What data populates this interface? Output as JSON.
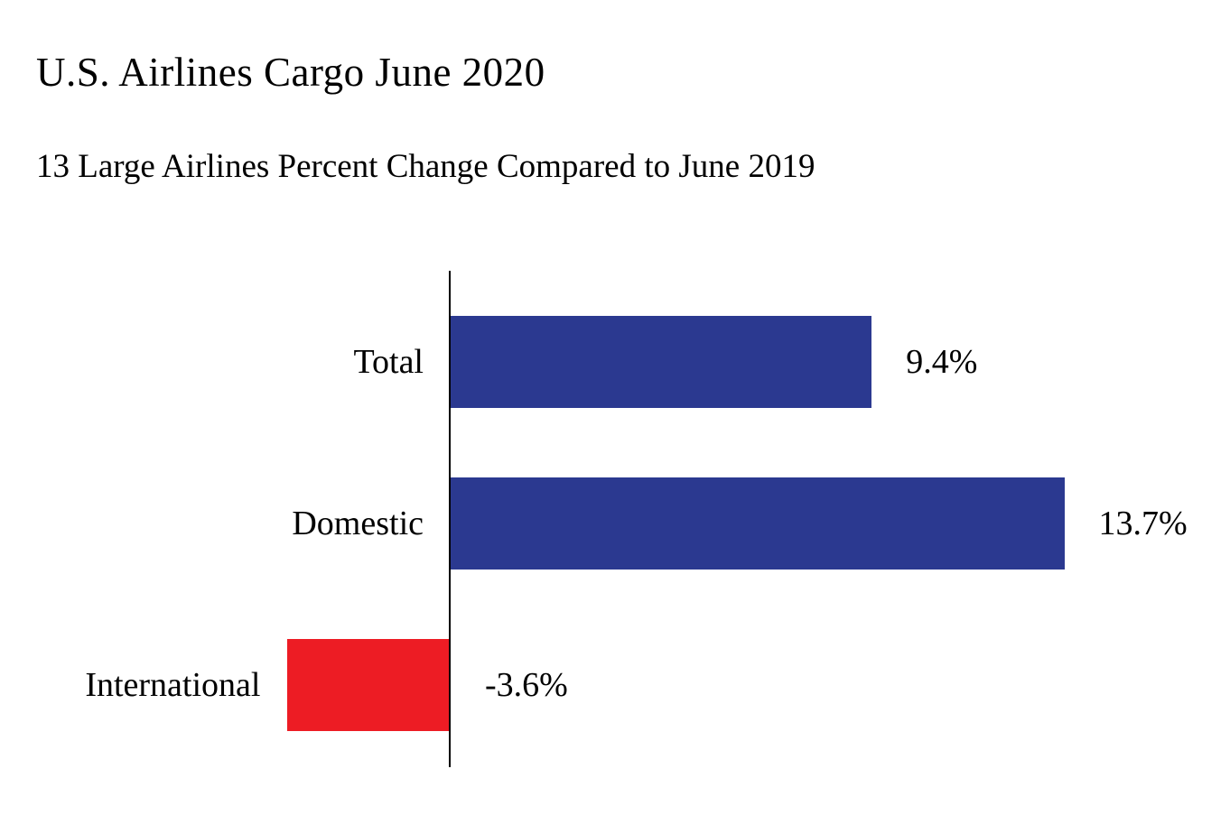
{
  "chart_data": {
    "type": "bar",
    "orientation": "horizontal",
    "title": "U.S. Airlines Cargo June 2020",
    "subtitle": "13 Large Airlines Percent Change Compared to June 2019",
    "categories": [
      "Total",
      "Domestic",
      "International"
    ],
    "values": [
      9.4,
      13.7,
      -3.6
    ],
    "value_labels": [
      "9.4%",
      "13.7%",
      "-3.6%"
    ],
    "xlabel": "",
    "ylabel": "",
    "xlim": [
      -3.6,
      13.7
    ],
    "grid": false,
    "legend": null,
    "unit": "percent",
    "positive_color": "#2B3990",
    "negative_color": "#ED1C24",
    "axis_color": "#000000",
    "text_color": "#000000",
    "background_color": "#FFFFFF"
  }
}
